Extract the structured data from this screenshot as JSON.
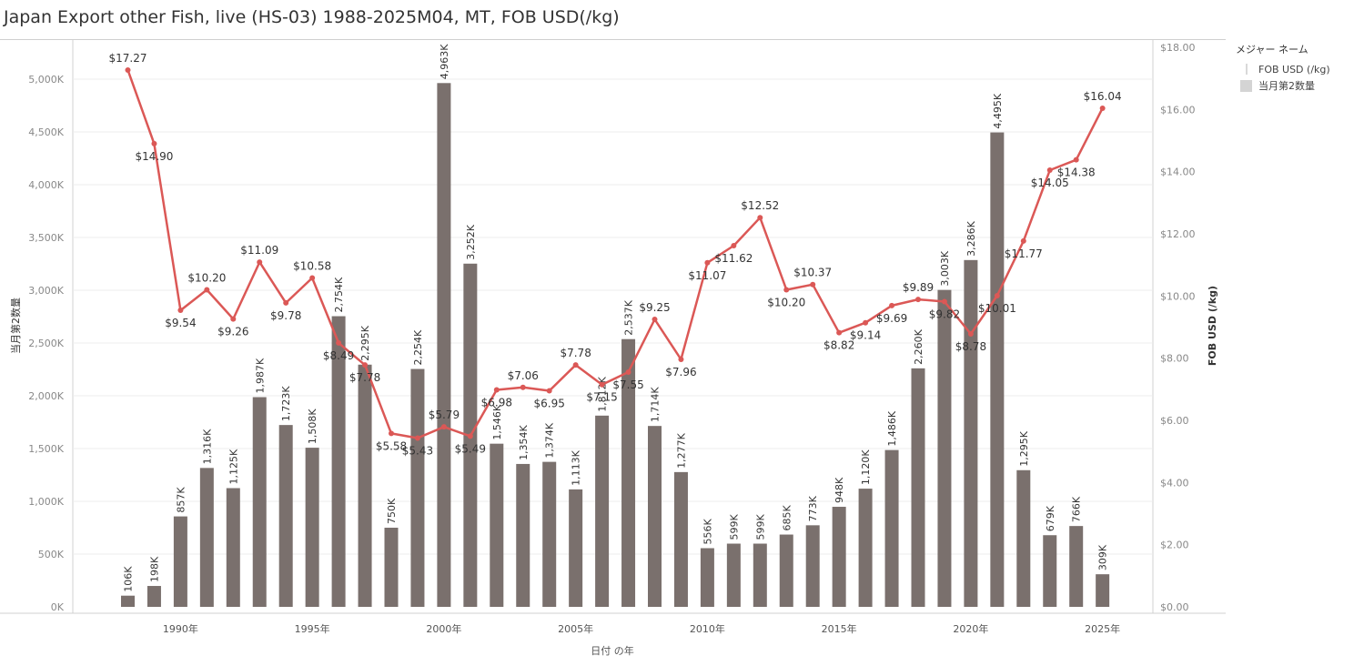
{
  "title": "Japan Export other Fish, live (HS-03) 1988-2025M04, MT, FOB USD(/kg)",
  "colors": {
    "bar": "#7a706d",
    "line": "#db5856",
    "grid": "#ececec",
    "axis_text": "#888888",
    "label_text": "#333333"
  },
  "legend": {
    "title": "メジャー ネーム",
    "items": [
      {
        "label": "FOB USD (/kg)",
        "icon": "line-swatch-icon"
      },
      {
        "label": "当月第2数量",
        "icon": "bar-swatch-icon"
      }
    ]
  },
  "chart_data": {
    "type": "bar",
    "xlabel": "日付 の年",
    "ylabel_left": "当月第2数量",
    "ylabel_right": "FOB USD (/kg)",
    "ylim_left": [
      0,
      5300000
    ],
    "ylim_right": [
      0,
      18
    ],
    "y_ticks_left": [
      "0K",
      "500K",
      "1,000K",
      "1,500K",
      "2,000K",
      "2,500K",
      "3,000K",
      "3,500K",
      "4,000K",
      "4,500K",
      "5,000K"
    ],
    "y_ticks_right": [
      "$0.00",
      "$2.00",
      "$4.00",
      "$6.00",
      "$8.00",
      "$10.00",
      "$12.00",
      "$14.00",
      "$16.00",
      "$18.00"
    ],
    "x_ticks": [
      "1990年",
      "1995年",
      "2000年",
      "2005年",
      "2010年",
      "2015年",
      "2020年",
      "2025年"
    ],
    "x": [
      1988,
      1989,
      1990,
      1991,
      1992,
      1993,
      1994,
      1995,
      1996,
      1997,
      1998,
      1999,
      2000,
      2001,
      2002,
      2003,
      2004,
      2005,
      2006,
      2007,
      2008,
      2009,
      2010,
      2011,
      2012,
      2013,
      2014,
      2015,
      2016,
      2017,
      2018,
      2019,
      2020,
      2021,
      2022,
      2023,
      2024,
      2025
    ],
    "series": [
      {
        "name": "当月第2数量",
        "type": "bar",
        "axis": "left",
        "values": [
          106000,
          198000,
          857000,
          1316000,
          1125000,
          1987000,
          1723000,
          1508000,
          2754000,
          2295000,
          750000,
          2254000,
          4963000,
          3252000,
          1546000,
          1354000,
          1374000,
          1113000,
          1812000,
          2537000,
          1714000,
          1277000,
          556000,
          599000,
          599000,
          685000,
          773000,
          948000,
          1120000,
          1486000,
          2260000,
          3003000,
          3286000,
          4495000,
          1295000,
          679000,
          766000,
          309000
        ],
        "labels": [
          "106K",
          "198K",
          "857K",
          "1,316K",
          "1,125K",
          "1,987K",
          "1,723K",
          "1,508K",
          "2,754K",
          "2,295K",
          "750K",
          "2,254K",
          "4,963K",
          "3,252K",
          "1,546K",
          "1,354K",
          "1,374K",
          "1,113K",
          "1,812K",
          "2,537K",
          "1,714K",
          "1,277K",
          "556K",
          "599K",
          "599K",
          "685K",
          "773K",
          "948K",
          "1,120K",
          "1,486K",
          "2,260K",
          "3,003K",
          "3,286K",
          "4,495K",
          "1,295K",
          "679K",
          "766K",
          "309K"
        ]
      },
      {
        "name": "FOB USD (/kg)",
        "type": "line",
        "axis": "right",
        "values": [
          17.27,
          14.9,
          9.54,
          10.2,
          9.26,
          11.09,
          9.78,
          10.58,
          8.49,
          7.78,
          5.58,
          5.43,
          5.79,
          5.49,
          6.98,
          7.06,
          6.95,
          7.78,
          7.15,
          7.55,
          9.25,
          7.96,
          11.07,
          11.62,
          12.52,
          10.2,
          10.37,
          8.82,
          9.14,
          9.69,
          9.89,
          9.82,
          8.78,
          10.01,
          11.77,
          14.05,
          14.38,
          16.04
        ],
        "labels": [
          "$17.27",
          "$14.90",
          "$9.54",
          "$10.20",
          "$9.26",
          "$11.09",
          "$9.78",
          "$10.58",
          "$8.49",
          "$7.78",
          "$5.58",
          "$5.43",
          "$5.79",
          "$5.49",
          "$6.98",
          "$7.06",
          "$6.95",
          "$7.78",
          "$7.15",
          "$7.55",
          "$9.25",
          "$7.96",
          "$11.07",
          "$11.62",
          "$12.52",
          "$10.20",
          "$10.37",
          "$8.82",
          "$9.14",
          "$9.69",
          "$9.89",
          "$9.82",
          "$8.78",
          "$10.01",
          "$11.77",
          "$14.05",
          "$14.38",
          "$16.04"
        ]
      }
    ]
  }
}
